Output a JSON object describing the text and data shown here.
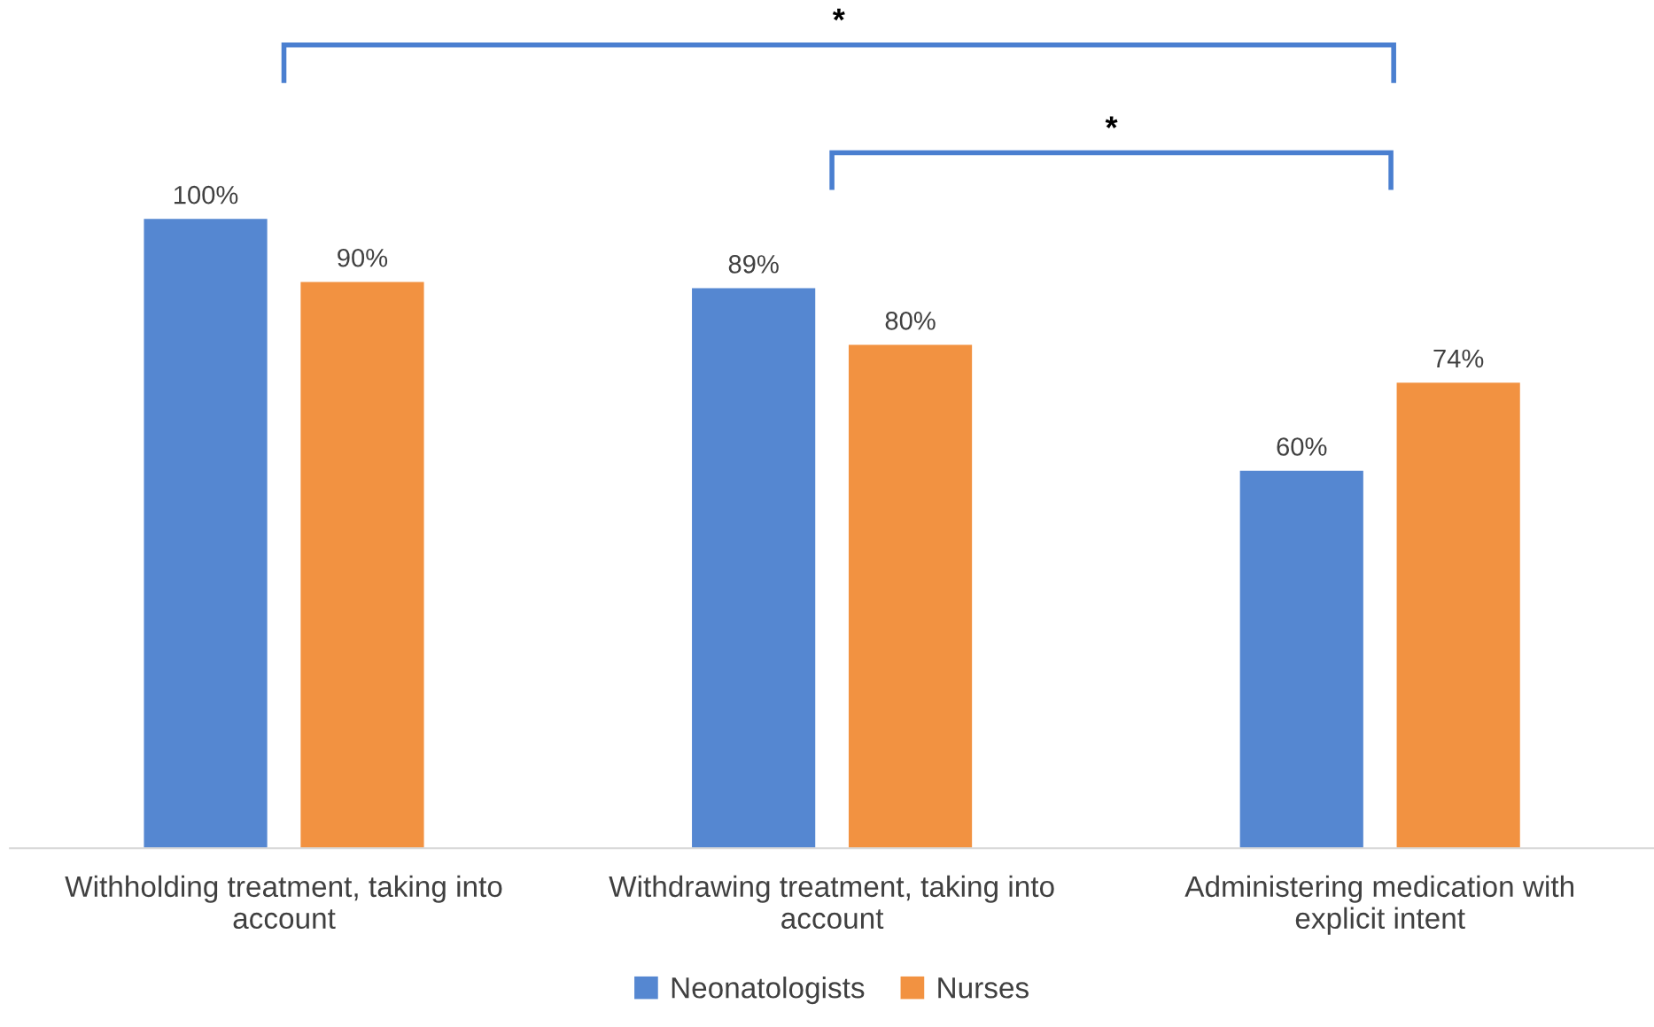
{
  "chart_data": {
    "type": "bar",
    "categories": [
      "Withholding treatment, taking into\naccount",
      "Withdrawing treatment, taking into\naccount",
      "Administering medication with\nexplicit intent"
    ],
    "series": [
      {
        "name": "Neonatologists",
        "color": "#5587d1",
        "values": [
          100,
          89,
          60
        ],
        "value_labels": [
          "100%",
          "89%",
          "60%"
        ]
      },
      {
        "name": "Nurses",
        "color": "#f29241",
        "values": [
          90,
          80,
          74
        ],
        "value_labels": [
          "90%",
          "80%",
          "74%"
        ]
      }
    ],
    "annotations": [
      "*",
      "*"
    ],
    "legend": "bottom",
    "grid": false
  }
}
